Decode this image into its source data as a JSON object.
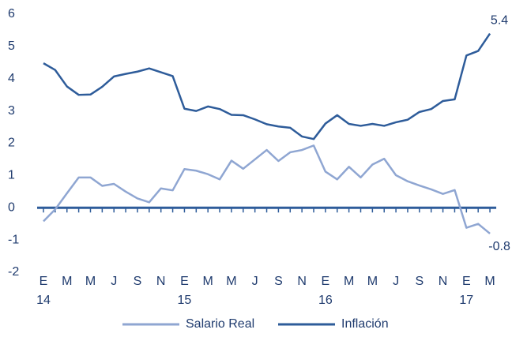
{
  "chart_data": {
    "type": "line",
    "categories": [
      "E",
      null,
      "M",
      null,
      "M",
      null,
      "J",
      null,
      "S",
      null,
      "N",
      null,
      "E",
      null,
      "M",
      null,
      "M",
      null,
      "J",
      null,
      "S",
      null,
      "N",
      null,
      "E",
      null,
      "M",
      null,
      "M",
      null,
      "J",
      null,
      "S",
      null,
      "N",
      null,
      "E",
      null,
      "M"
    ],
    "x_year_labels": [
      "14",
      null,
      null,
      null,
      null,
      null,
      null,
      null,
      null,
      null,
      null,
      null,
      "15",
      null,
      null,
      null,
      null,
      null,
      null,
      null,
      null,
      null,
      null,
      null,
      "16",
      null,
      null,
      null,
      null,
      null,
      null,
      null,
      null,
      null,
      null,
      null,
      "17",
      null,
      null
    ],
    "series": [
      {
        "name": "Salario Real",
        "color": "#8fa6d2",
        "values": [
          -0.42,
          -0.05,
          0.45,
          0.94,
          0.94,
          0.68,
          0.74,
          0.5,
          0.29,
          0.17,
          0.6,
          0.54,
          1.2,
          1.15,
          1.04,
          0.88,
          1.46,
          1.21,
          1.5,
          1.79,
          1.45,
          1.72,
          1.79,
          1.93,
          1.12,
          0.88,
          1.27,
          0.94,
          1.34,
          1.52,
          1.01,
          0.82,
          0.69,
          0.57,
          0.43,
          0.55,
          -0.62,
          -0.5,
          -0.8
        ],
        "value_labels": [
          null,
          null,
          null,
          null,
          null,
          null,
          null,
          null,
          null,
          null,
          null,
          null,
          null,
          null,
          null,
          null,
          null,
          null,
          null,
          null,
          null,
          null,
          null,
          null,
          null,
          null,
          null,
          null,
          null,
          null,
          null,
          null,
          null,
          null,
          null,
          null,
          null,
          null,
          "-0.8"
        ]
      },
      {
        "name": "Inflación",
        "color": "#2e5c9a",
        "values": [
          4.48,
          4.27,
          3.76,
          3.5,
          3.51,
          3.75,
          4.07,
          4.15,
          4.22,
          4.32,
          4.2,
          4.08,
          3.07,
          3.0,
          3.14,
          3.06,
          2.88,
          2.87,
          2.74,
          2.59,
          2.52,
          2.48,
          2.21,
          2.13,
          2.61,
          2.87,
          2.6,
          2.54,
          2.6,
          2.54,
          2.65,
          2.73,
          2.97,
          3.06,
          3.31,
          3.36,
          4.72,
          4.86,
          5.4
        ],
        "value_labels": [
          null,
          null,
          null,
          null,
          null,
          null,
          null,
          null,
          null,
          null,
          null,
          null,
          null,
          null,
          null,
          null,
          null,
          null,
          null,
          null,
          null,
          null,
          null,
          null,
          null,
          null,
          null,
          null,
          null,
          null,
          null,
          null,
          null,
          null,
          null,
          null,
          null,
          null,
          "5.4"
        ]
      }
    ],
    "ylim": [
      -2,
      6
    ],
    "yticks": [
      -2,
      -1,
      0,
      1,
      2,
      3,
      4,
      5,
      6
    ],
    "grid": false,
    "legend": "bottom"
  }
}
